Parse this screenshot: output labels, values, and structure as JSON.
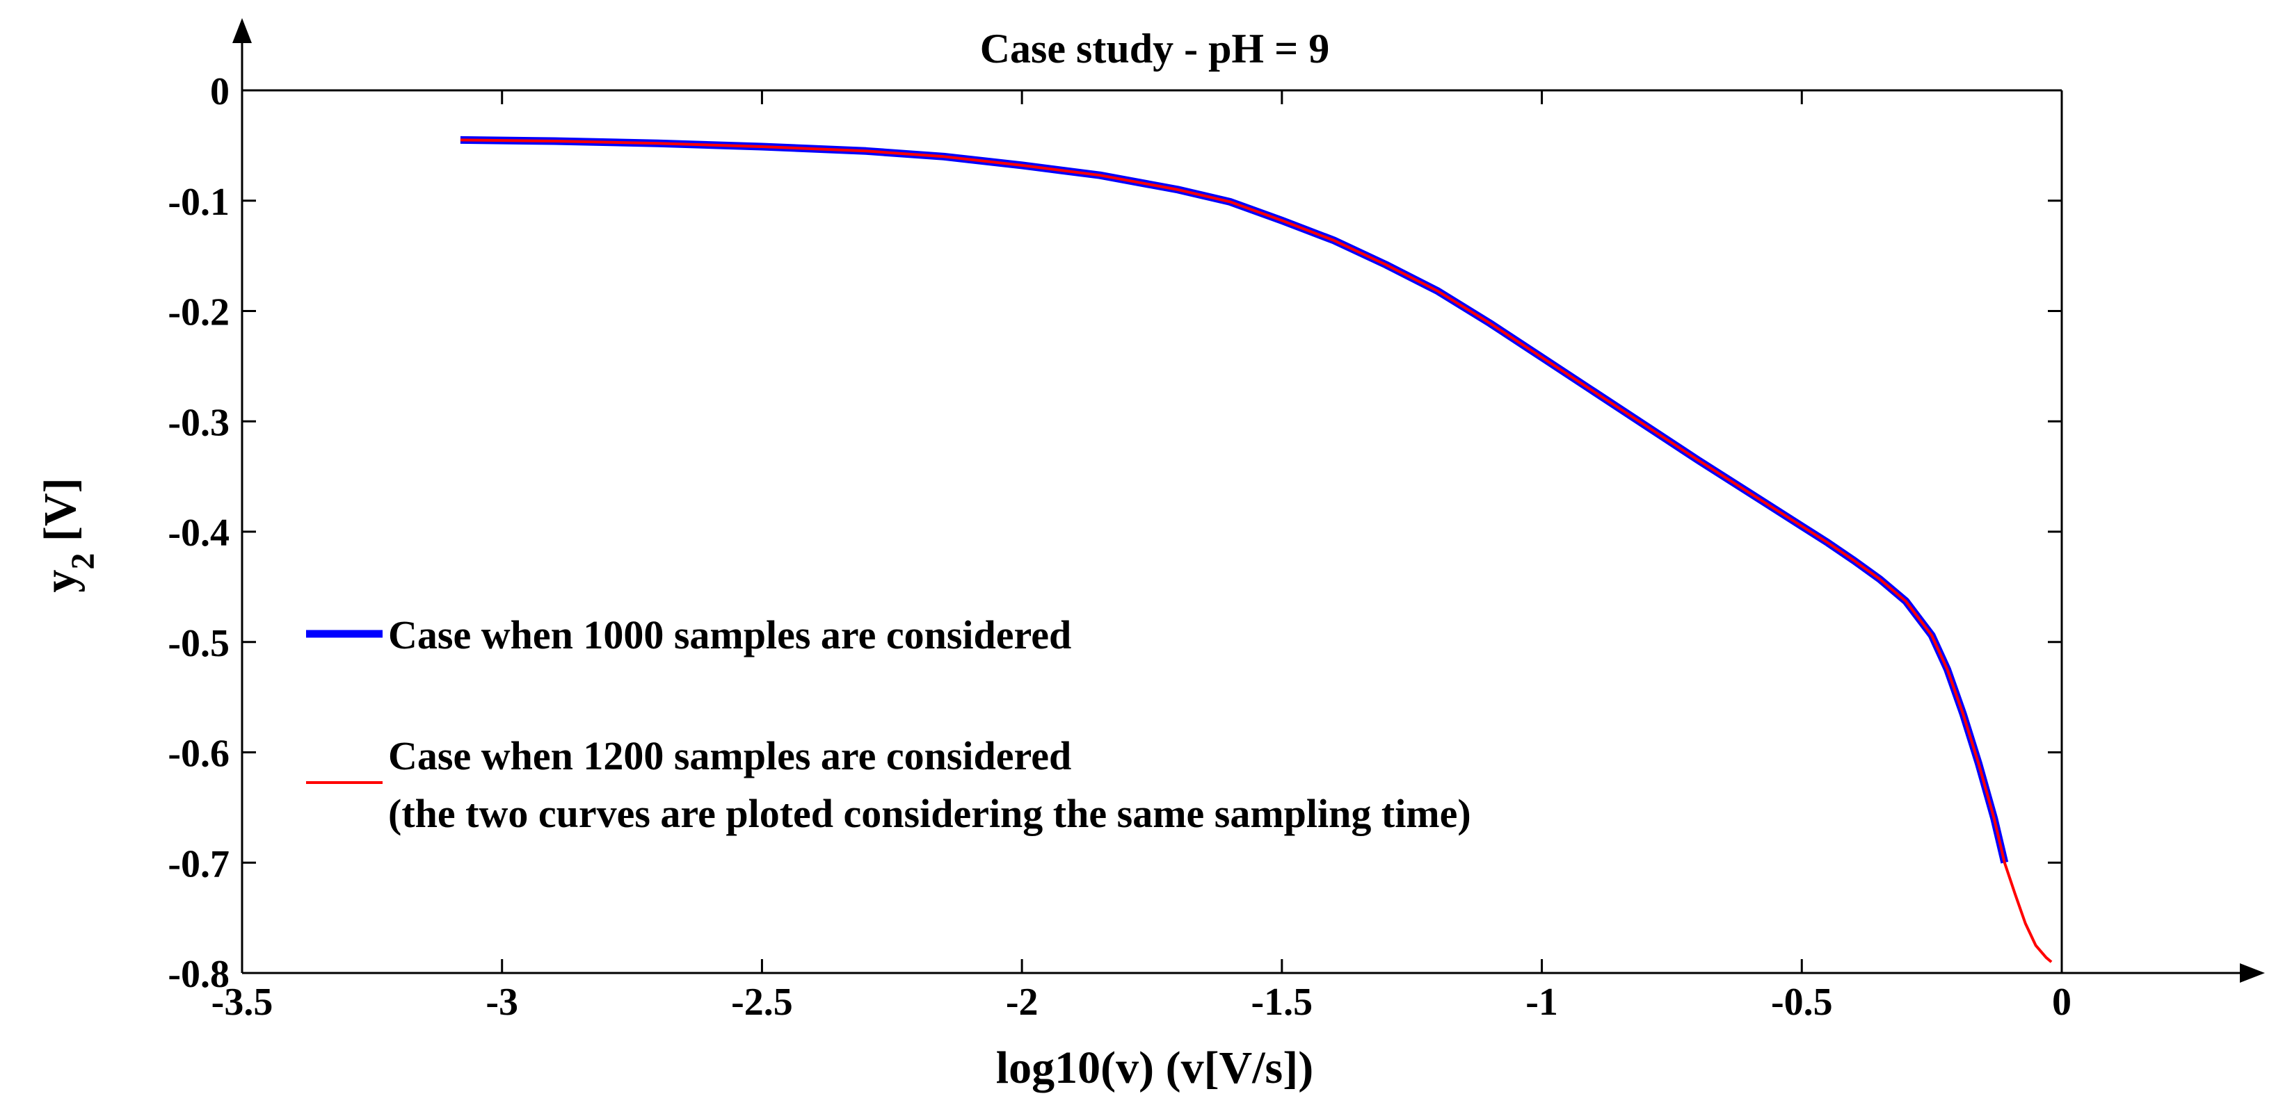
{
  "chart_data": {
    "type": "line",
    "title": "Case study - pH = 9",
    "xlabel": "log10(v) (v[V/s])",
    "ylabel": {
      "base": "y",
      "subscript": "2",
      "unit": " [V]"
    },
    "xlim": [
      -3.5,
      0
    ],
    "ylim": [
      -0.8,
      0
    ],
    "x_ticks": [
      -3.5,
      -3,
      -2.5,
      -2,
      -1.5,
      -1,
      -0.5,
      0
    ],
    "x_tick_labels": [
      "-3.5",
      "-3",
      "-2.5",
      "-2",
      "-1.5",
      "-1",
      "-0.5",
      "0"
    ],
    "y_ticks": [
      0,
      -0.1,
      -0.2,
      -0.3,
      -0.4,
      -0.5,
      -0.6,
      -0.7,
      -0.8
    ],
    "y_tick_labels": [
      "0",
      "-0.1",
      "-0.2",
      "-0.3",
      "-0.4",
      "-0.5",
      "-0.6",
      "-0.7",
      "-0.8"
    ],
    "grid": false,
    "legend_position": "left",
    "series": [
      {
        "name": "Case when 1000 samples are considered",
        "color": "#0000ff",
        "line_style": "thick",
        "points": [
          [
            -3.08,
            -0.045
          ],
          [
            -2.9,
            -0.046
          ],
          [
            -2.7,
            -0.048
          ],
          [
            -2.5,
            -0.051
          ],
          [
            -2.3,
            -0.055
          ],
          [
            -2.15,
            -0.06
          ],
          [
            -2.0,
            -0.068
          ],
          [
            -1.85,
            -0.077
          ],
          [
            -1.7,
            -0.09
          ],
          [
            -1.6,
            -0.101
          ],
          [
            -1.5,
            -0.118
          ],
          [
            -1.4,
            -0.136
          ],
          [
            -1.3,
            -0.158
          ],
          [
            -1.2,
            -0.182
          ],
          [
            -1.1,
            -0.211
          ],
          [
            -1.0,
            -0.242
          ],
          [
            -0.9,
            -0.273
          ],
          [
            -0.8,
            -0.304
          ],
          [
            -0.7,
            -0.335
          ],
          [
            -0.6,
            -0.365
          ],
          [
            -0.5,
            -0.395
          ],
          [
            -0.45,
            -0.41
          ],
          [
            -0.4,
            -0.426
          ],
          [
            -0.35,
            -0.443
          ],
          [
            -0.3,
            -0.463
          ],
          [
            -0.25,
            -0.494
          ],
          [
            -0.22,
            -0.525
          ],
          [
            -0.19,
            -0.565
          ],
          [
            -0.16,
            -0.61
          ],
          [
            -0.13,
            -0.66
          ],
          [
            -0.11,
            -0.7
          ]
        ]
      },
      {
        "name": "Case when 1200 samples are considered",
        "color": "#ff0000",
        "line_style": "thin",
        "points": [
          [
            -3.08,
            -0.045
          ],
          [
            -2.9,
            -0.046
          ],
          [
            -2.7,
            -0.048
          ],
          [
            -2.5,
            -0.051
          ],
          [
            -2.3,
            -0.055
          ],
          [
            -2.15,
            -0.06
          ],
          [
            -2.0,
            -0.068
          ],
          [
            -1.85,
            -0.077
          ],
          [
            -1.7,
            -0.09
          ],
          [
            -1.6,
            -0.101
          ],
          [
            -1.5,
            -0.118
          ],
          [
            -1.4,
            -0.136
          ],
          [
            -1.3,
            -0.158
          ],
          [
            -1.2,
            -0.182
          ],
          [
            -1.1,
            -0.211
          ],
          [
            -1.0,
            -0.242
          ],
          [
            -0.9,
            -0.273
          ],
          [
            -0.8,
            -0.304
          ],
          [
            -0.7,
            -0.335
          ],
          [
            -0.6,
            -0.365
          ],
          [
            -0.5,
            -0.395
          ],
          [
            -0.45,
            -0.41
          ],
          [
            -0.4,
            -0.426
          ],
          [
            -0.35,
            -0.443
          ],
          [
            -0.3,
            -0.463
          ],
          [
            -0.25,
            -0.494
          ],
          [
            -0.22,
            -0.525
          ],
          [
            -0.19,
            -0.565
          ],
          [
            -0.16,
            -0.61
          ],
          [
            -0.13,
            -0.66
          ],
          [
            -0.11,
            -0.7
          ],
          [
            -0.09,
            -0.728
          ],
          [
            -0.07,
            -0.755
          ],
          [
            -0.05,
            -0.775
          ],
          [
            -0.03,
            -0.786
          ],
          [
            -0.02,
            -0.79
          ]
        ]
      }
    ],
    "annotations": [
      "(the two curves are ploted considering the same sampling time)"
    ]
  }
}
